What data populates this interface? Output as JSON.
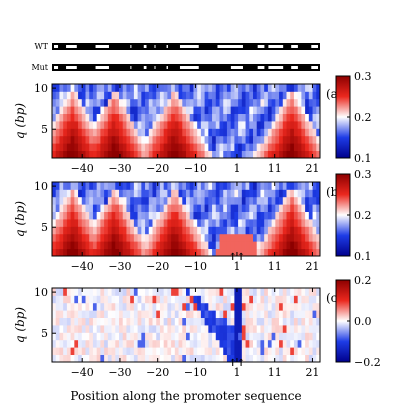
{
  "chart_data": [
    {
      "type": "heatmap",
      "panel_label": "(a)",
      "ylabel": "q (bp)",
      "xlabel": "",
      "x_ticks": [
        "−40",
        "−30",
        "−20",
        "−10",
        "1",
        "11",
        "21"
      ],
      "y_ticks": [
        "10",
        "5"
      ],
      "x_range": [
        -48,
        23
      ],
      "y_range": [
        1.5,
        10.5
      ],
      "colorbar": {
        "min": 0.1,
        "max": 0.3,
        "ticks": [
          "0.3",
          "0.2",
          "0.1"
        ],
        "colormap": "blue-white-red"
      },
      "peaks": [
        -44,
        -33,
        -17,
        14
      ],
      "mutation_marker": false
    },
    {
      "type": "heatmap",
      "panel_label": "(b)",
      "ylabel": "q (bp)",
      "xlabel": "",
      "x_ticks": [
        "−40",
        "−30",
        "−20",
        "−10",
        "1",
        "11",
        "21"
      ],
      "y_ticks": [
        "10",
        "5"
      ],
      "x_range": [
        -48,
        23
      ],
      "y_range": [
        1.5,
        10.5
      ],
      "colorbar": {
        "min": 0.1,
        "max": 0.3,
        "ticks": [
          "0.3",
          "0.2",
          "0.1"
        ],
        "colormap": "blue-white-red"
      },
      "peaks": [
        -44,
        -33,
        -17,
        14
      ],
      "mutation_marker": true
    },
    {
      "type": "heatmap",
      "panel_label": "(c)",
      "ylabel": "q (bp)",
      "xlabel": "Position along the promoter sequence",
      "x_ticks": [
        "−40",
        "−30",
        "−20",
        "−10",
        "1",
        "11",
        "21"
      ],
      "y_ticks": [
        "10",
        "5"
      ],
      "x_range": [
        -48,
        23
      ],
      "y_range": [
        1.5,
        10.5
      ],
      "colorbar": {
        "min": -0.2,
        "max": 0.2,
        "ticks": [
          "0.2",
          "0.0",
          "−0.2"
        ],
        "colormap": "blue-white-red"
      },
      "mutation_marker": true
    }
  ],
  "sequence_tracks": [
    {
      "label": "WT",
      "segments": [
        [
          0,
          0.03
        ],
        [
          0.045,
          0.1
        ],
        [
          0.155,
          0.22
        ],
        [
          0.285,
          0.3
        ],
        [
          0.335,
          0.36
        ],
        [
          0.375,
          0.39
        ],
        [
          0.42,
          0.44
        ],
        [
          0.47,
          0.555
        ],
        [
          0.61,
          0.72
        ],
        [
          0.76,
          0.8
        ],
        [
          0.8,
          0.87
        ],
        [
          0.885,
          0.925
        ],
        [
          0.96,
          1.0
        ]
      ]
    },
    {
      "label": "Mut",
      "segments": [
        [
          0,
          0.03
        ],
        [
          0.045,
          0.1
        ],
        [
          0.155,
          0.22
        ],
        [
          0.285,
          0.3
        ],
        [
          0.335,
          0.36
        ],
        [
          0.375,
          0.39
        ],
        [
          0.42,
          0.44
        ],
        [
          0.47,
          0.555
        ],
        [
          0.66,
          0.72
        ],
        [
          0.76,
          0.8
        ],
        [
          0.8,
          0.87
        ],
        [
          0.885,
          0.925
        ],
        [
          0.96,
          1.0
        ]
      ]
    }
  ],
  "mutation_label": "↑↑"
}
